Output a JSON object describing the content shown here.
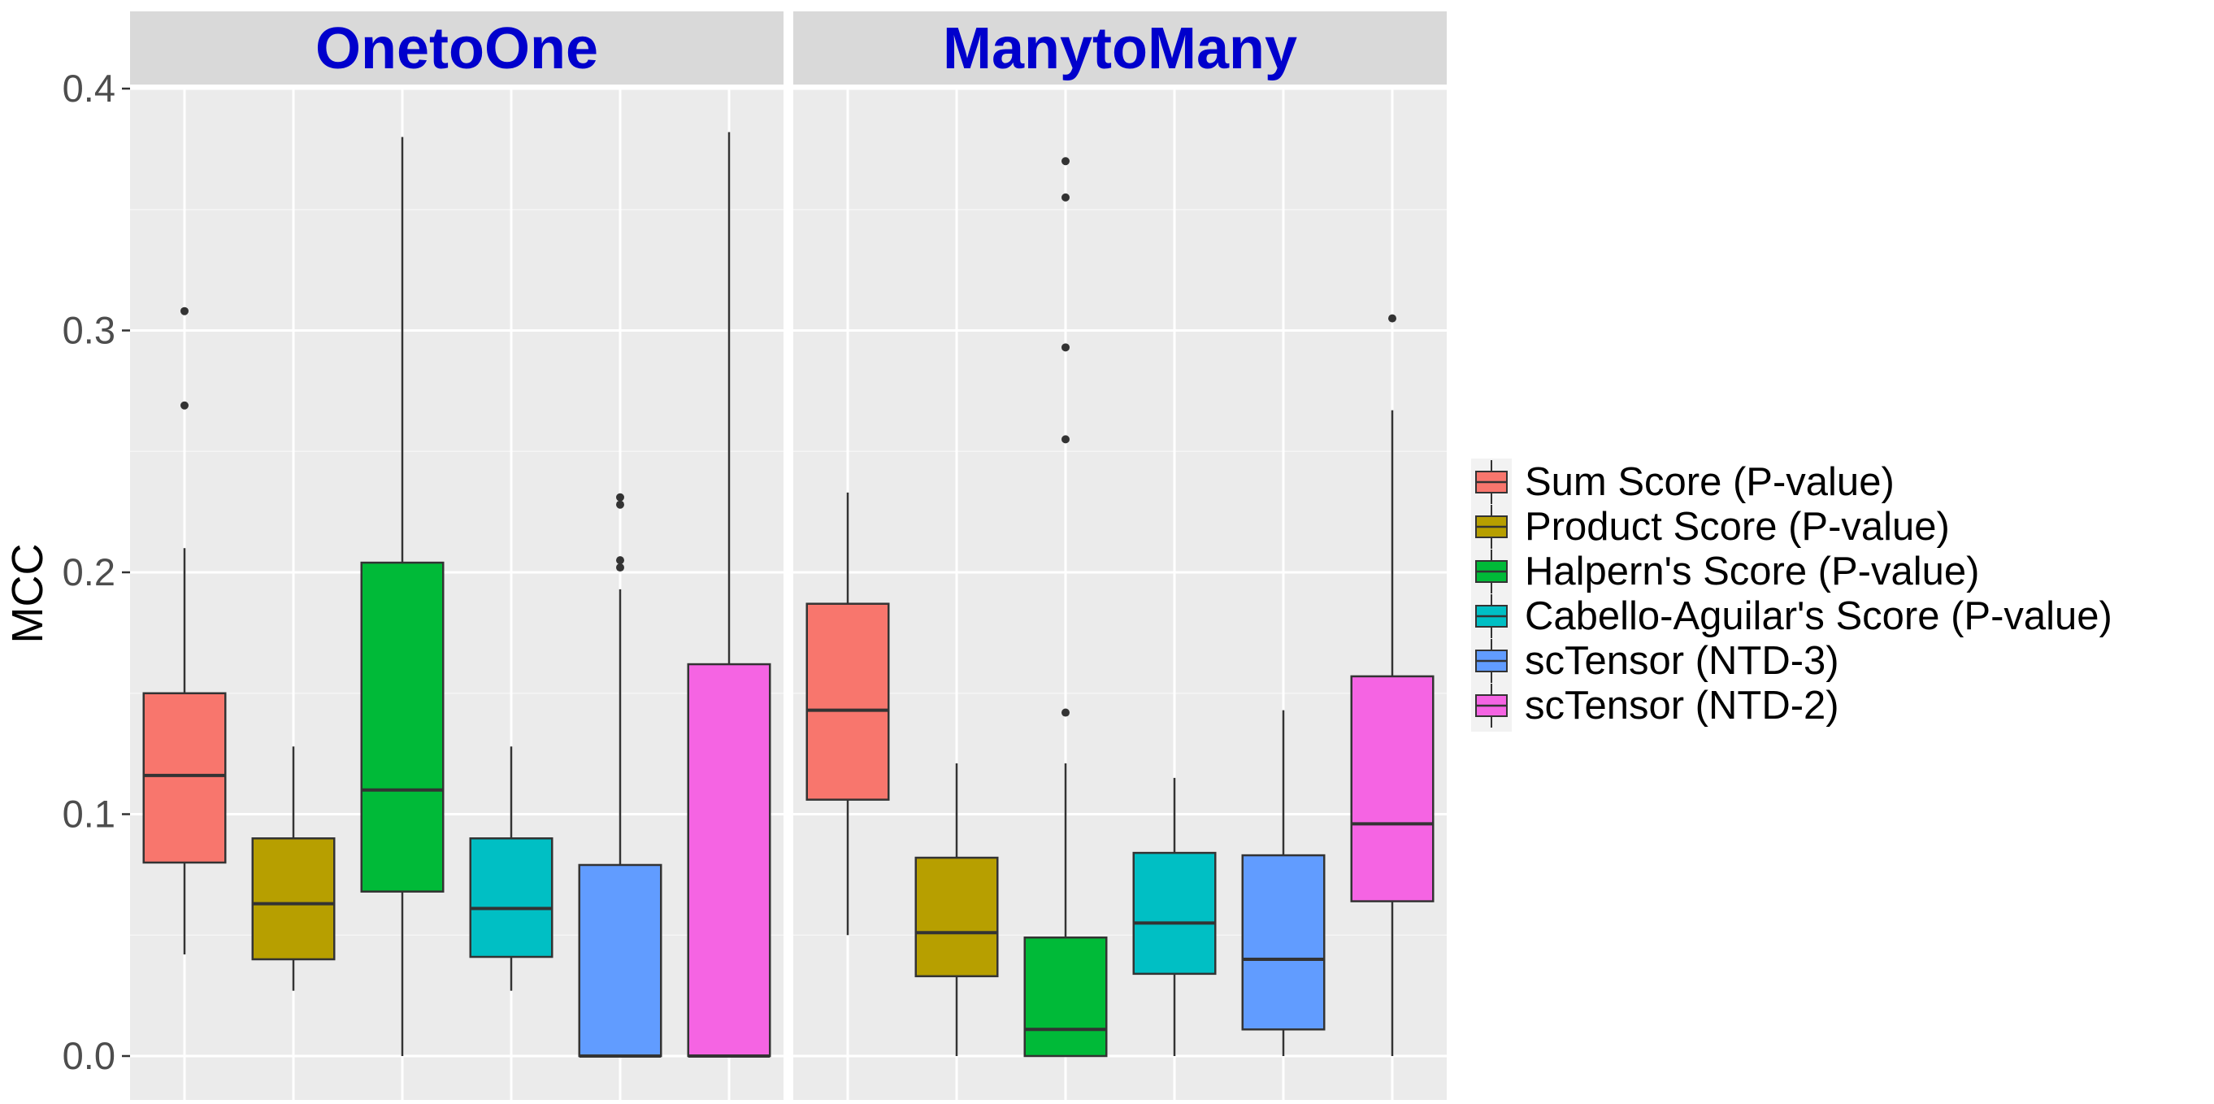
{
  "chart_data": {
    "type": "boxplot",
    "ylabel": "MCC",
    "ylim": [
      -0.018,
      0.4
    ],
    "yticks": [
      0.0,
      0.1,
      0.2,
      0.3,
      0.4
    ],
    "ytick_labels": [
      "0.0",
      "0.1",
      "0.2",
      "0.3",
      "0.4"
    ],
    "grid": true,
    "legend_position": "right",
    "series": [
      {
        "name": "Sum Score (P-value)",
        "color": "#f8766d"
      },
      {
        "name": "Product Score (P-value)",
        "color": "#b79f00"
      },
      {
        "name": "Halpern's Score (P-value)",
        "color": "#00ba38"
      },
      {
        "name": "Cabello-Aguilar's Score (P-value)",
        "color": "#00bfc4"
      },
      {
        "name": "scTensor (NTD-3)",
        "color": "#619cff"
      },
      {
        "name": "scTensor (NTD-2)",
        "color": "#f564e3"
      }
    ],
    "panels": [
      {
        "title": "OnetoOne",
        "boxes": [
          {
            "series": "Sum Score (P-value)",
            "lower_whisker": 0.042,
            "q1": 0.08,
            "median": 0.116,
            "q3": 0.15,
            "upper_whisker": 0.21,
            "outliers": [
              0.269,
              0.308
            ]
          },
          {
            "series": "Product Score (P-value)",
            "lower_whisker": 0.027,
            "q1": 0.04,
            "median": 0.063,
            "q3": 0.09,
            "upper_whisker": 0.128,
            "outliers": []
          },
          {
            "series": "Halpern's Score (P-value)",
            "lower_whisker": 0.0,
            "q1": 0.068,
            "median": 0.11,
            "q3": 0.204,
            "upper_whisker": 0.38,
            "outliers": []
          },
          {
            "series": "Cabello-Aguilar's Score (P-value)",
            "lower_whisker": 0.027,
            "q1": 0.041,
            "median": 0.061,
            "q3": 0.09,
            "upper_whisker": 0.128,
            "outliers": []
          },
          {
            "series": "scTensor (NTD-3)",
            "lower_whisker": 0.0,
            "q1": 0.0,
            "median": 0.0,
            "q3": 0.079,
            "upper_whisker": 0.193,
            "outliers": [
              0.202,
              0.205,
              0.228,
              0.231
            ]
          },
          {
            "series": "scTensor (NTD-2)",
            "lower_whisker": 0.0,
            "q1": 0.0,
            "median": 0.0,
            "q3": 0.162,
            "upper_whisker": 0.382,
            "outliers": []
          }
        ]
      },
      {
        "title": "ManytoMany",
        "boxes": [
          {
            "series": "Sum Score (P-value)",
            "lower_whisker": 0.05,
            "q1": 0.106,
            "median": 0.143,
            "q3": 0.187,
            "upper_whisker": 0.233,
            "outliers": []
          },
          {
            "series": "Product Score (P-value)",
            "lower_whisker": 0.0,
            "q1": 0.033,
            "median": 0.051,
            "q3": 0.082,
            "upper_whisker": 0.121,
            "outliers": []
          },
          {
            "series": "Halpern's Score (P-value)",
            "lower_whisker": 0.0,
            "q1": 0.0,
            "median": 0.011,
            "q3": 0.049,
            "upper_whisker": 0.121,
            "outliers": [
              0.142,
              0.255,
              0.293,
              0.355,
              0.37
            ]
          },
          {
            "series": "Cabello-Aguilar's Score (P-value)",
            "lower_whisker": 0.0,
            "q1": 0.034,
            "median": 0.055,
            "q3": 0.084,
            "upper_whisker": 0.115,
            "outliers": []
          },
          {
            "series": "scTensor (NTD-3)",
            "lower_whisker": 0.0,
            "q1": 0.011,
            "median": 0.04,
            "q3": 0.083,
            "upper_whisker": 0.143,
            "outliers": []
          },
          {
            "series": "scTensor (NTD-2)",
            "lower_whisker": 0.0,
            "q1": 0.064,
            "median": 0.096,
            "q3": 0.157,
            "upper_whisker": 0.267,
            "outliers": [
              0.305
            ]
          }
        ]
      }
    ]
  }
}
